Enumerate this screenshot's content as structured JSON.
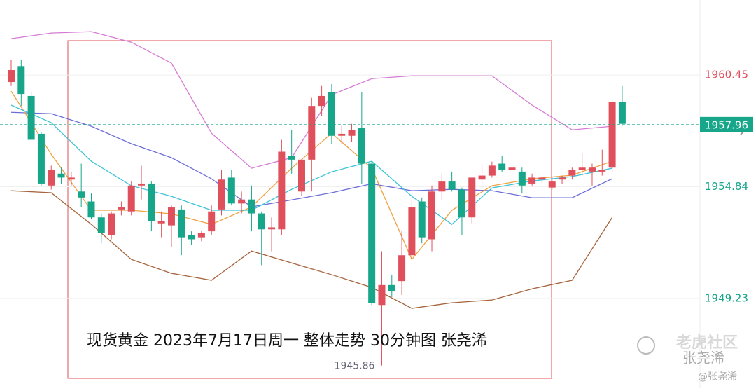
{
  "chart_data": {
    "type": "candlestick",
    "title": "现货黄金 2023年7月17日周一 整体走势 30分钟图  张尧浠",
    "open": [
      1960.1,
      1960.9,
      1959.4,
      1957.5,
      1954.9,
      1955.5,
      1955.2,
      1954.6,
      1954.1,
      1953.3,
      1952.4,
      1953.7,
      1953.6,
      1954.9,
      1955.0,
      1953.0,
      1952.9,
      1953.7,
      1952.4,
      1952.3,
      1952.6,
      1953.7,
      1955.3,
      1954.0,
      1954.2,
      1953.5,
      1952.7,
      1952.7,
      1956.4,
      1954.6,
      1956.2,
      1958.9,
      1959.6,
      1957.4,
      1957.4,
      1957.8,
      1956.0,
      1948.9,
      1949.9,
      1950.1,
      1951.4,
      1954.1,
      1952.2,
      1954.6,
      1955.1,
      1954.7,
      1953.3,
      1955.2,
      1955.4,
      1956.0,
      1955.7,
      1955.6,
      1955.0,
      1955.2,
      1954.8,
      1955.2,
      1955.4,
      1955.7,
      1955.6,
      1955.6,
      1955.8,
      1959.1
    ],
    "high": [
      1961.2,
      1961.2,
      1959.6,
      1957.6,
      1955.9,
      1955.8,
      1955.6,
      1956.0,
      1954.5,
      1953.5,
      1953.6,
      1954.1,
      1955.1,
      1955.9,
      1955.1,
      1953.6,
      1953.9,
      1953.9,
      1952.6,
      1952.6,
      1953.9,
      1955.7,
      1955.7,
      1954.6,
      1954.9,
      1953.6,
      1953.3,
      1957.2,
      1957.7,
      1956.2,
      1959.3,
      1959.9,
      1960.0,
      1957.9,
      1958.0,
      1959.6,
      1956.1,
      1951.6,
      1950.4,
      1952.6,
      1954.2,
      1954.3,
      1954.9,
      1955.5,
      1955.6,
      1954.8,
      1955.3,
      1956.0,
      1956.1,
      1956.4,
      1956.0,
      1955.8,
      1955.5,
      1955.4,
      1955.3,
      1955.4,
      1955.8,
      1956.5,
      1956.0,
      1956.7,
      1959.2,
      1959.9
    ],
    "low": [
      1959.9,
      1958.9,
      1957.2,
      1954.9,
      1954.7,
      1955.0,
      1954.9,
      1953.8,
      1953.2,
      1952.0,
      1952.2,
      1953.4,
      1953.4,
      1954.2,
      1952.6,
      1952.3,
      1951.8,
      1951.4,
      1951.9,
      1952.1,
      1952.4,
      1953.4,
      1953.9,
      1953.5,
      1952.6,
      1950.9,
      1951.6,
      1952.4,
      1955.5,
      1954.4,
      1954.6,
      1958.4,
      1957.0,
      1957.0,
      1957.1,
      1955.0,
      1948.9,
      1945.86,
      1949.3,
      1949.4,
      1951.2,
      1952.0,
      1951.6,
      1954.2,
      1954.6,
      1952.4,
      1953.0,
      1954.8,
      1955.3,
      1955.6,
      1955.3,
      1954.5,
      1954.9,
      1955.0,
      1954.7,
      1955.0,
      1955.2,
      1955.4,
      1954.9,
      1955.4,
      1955.6,
      1957.9
    ],
    "close": [
      1960.7,
      1959.5,
      1957.2,
      1955.0,
      1955.7,
      1955.3,
      1955.3,
      1954.3,
      1953.3,
      1952.5,
      1953.5,
      1953.8,
      1954.9,
      1955.0,
      1953.1,
      1953.1,
      1953.8,
      1952.3,
      1952.2,
      1952.5,
      1953.6,
      1955.2,
      1954.0,
      1954.2,
      1953.5,
      1952.7,
      1952.8,
      1956.6,
      1956.2,
      1956.2,
      1958.9,
      1959.4,
      1957.4,
      1957.5,
      1957.7,
      1956.0,
      1949.0,
      1949.9,
      1949.6,
      1951.4,
      1953.8,
      1952.3,
      1954.6,
      1955.1,
      1954.7,
      1953.3,
      1955.3,
      1955.4,
      1955.9,
      1955.7,
      1955.8,
      1954.9,
      1955.3,
      1955.3,
      1955.1,
      1955.3,
      1955.7,
      1955.8,
      1955.8,
      1955.7,
      1959.1,
      1958.0
    ],
    "up_color": "#e0505c",
    "down_color": "#17a689",
    "lines": [
      {
        "color": "#d57bd4",
        "x": [
          0,
          4,
          8,
          12,
          16,
          20,
          24,
          28,
          32,
          36,
          40,
          44,
          48,
          52,
          56,
          60
        ],
        "values": [
          1962.28,
          1962.56,
          1962.63,
          1962.1,
          1961.05,
          1957.53,
          1955.77,
          1956.3,
          1959.46,
          1960.27,
          1960.41,
          1960.41,
          1960.41,
          1958.94,
          1957.7,
          1957.88
        ]
      },
      {
        "color": "#6d6fd8",
        "x": [
          0,
          4,
          8,
          12,
          16,
          20,
          24,
          28,
          32,
          36,
          40,
          44,
          48,
          52,
          56,
          60
        ],
        "values": [
          1958.58,
          1958.51,
          1957.88,
          1957.0,
          1956.3,
          1955.24,
          1953.83,
          1954.18,
          1954.54,
          1954.99,
          1954.64,
          1954.71,
          1954.64,
          1954.29,
          1954.29,
          1955.24
        ]
      },
      {
        "color": "#a5643c",
        "x": [
          0,
          4,
          8,
          12,
          16,
          20,
          24,
          28,
          32,
          36,
          40,
          44,
          48,
          52,
          56,
          60
        ],
        "values": [
          1954.64,
          1954.54,
          1952.95,
          1951.19,
          1950.49,
          1950.14,
          1951.61,
          1951.01,
          1950.42,
          1949.78,
          1948.73,
          1949.01,
          1949.15,
          1949.71,
          1950.14,
          1953.3
        ]
      },
      {
        "color": "#f0a040",
        "x": [
          0,
          4,
          8,
          12,
          16,
          20,
          24,
          28,
          32,
          36,
          40,
          44,
          48,
          52,
          56,
          60
        ],
        "values": [
          1959.64,
          1956.47,
          1953.66,
          1953.66,
          1953.48,
          1952.95,
          1953.83,
          1955.77,
          1957.53,
          1955.77,
          1951.19,
          1953.66,
          1954.89,
          1955.24,
          1955.42,
          1956.12
        ]
      },
      {
        "color": "#3cc3d6",
        "x": [
          0,
          4,
          8,
          12,
          16,
          20,
          24,
          28,
          32,
          36,
          40,
          44,
          48,
          52,
          56,
          60
        ],
        "values": [
          1958.94,
          1958.06,
          1956.12,
          1954.89,
          1954.36,
          1953.66,
          1953.66,
          1954.71,
          1955.59,
          1956.12,
          1954.36,
          1952.95,
          1954.78,
          1955.13,
          1955.35,
          1955.77
        ]
      }
    ],
    "ylim": [
      1944.72,
      1964.22
    ],
    "yticks": [
      1960.45,
      1954.84,
      1949.23
    ],
    "ytick_colors": [
      "#e0505c",
      "#17a689",
      "#17a689"
    ],
    "current_price": 1957.96,
    "current_color": "#17a689",
    "grid": true,
    "watermark": [
      "老虎社区",
      "张尧浠",
      "@张尧浠"
    ]
  }
}
